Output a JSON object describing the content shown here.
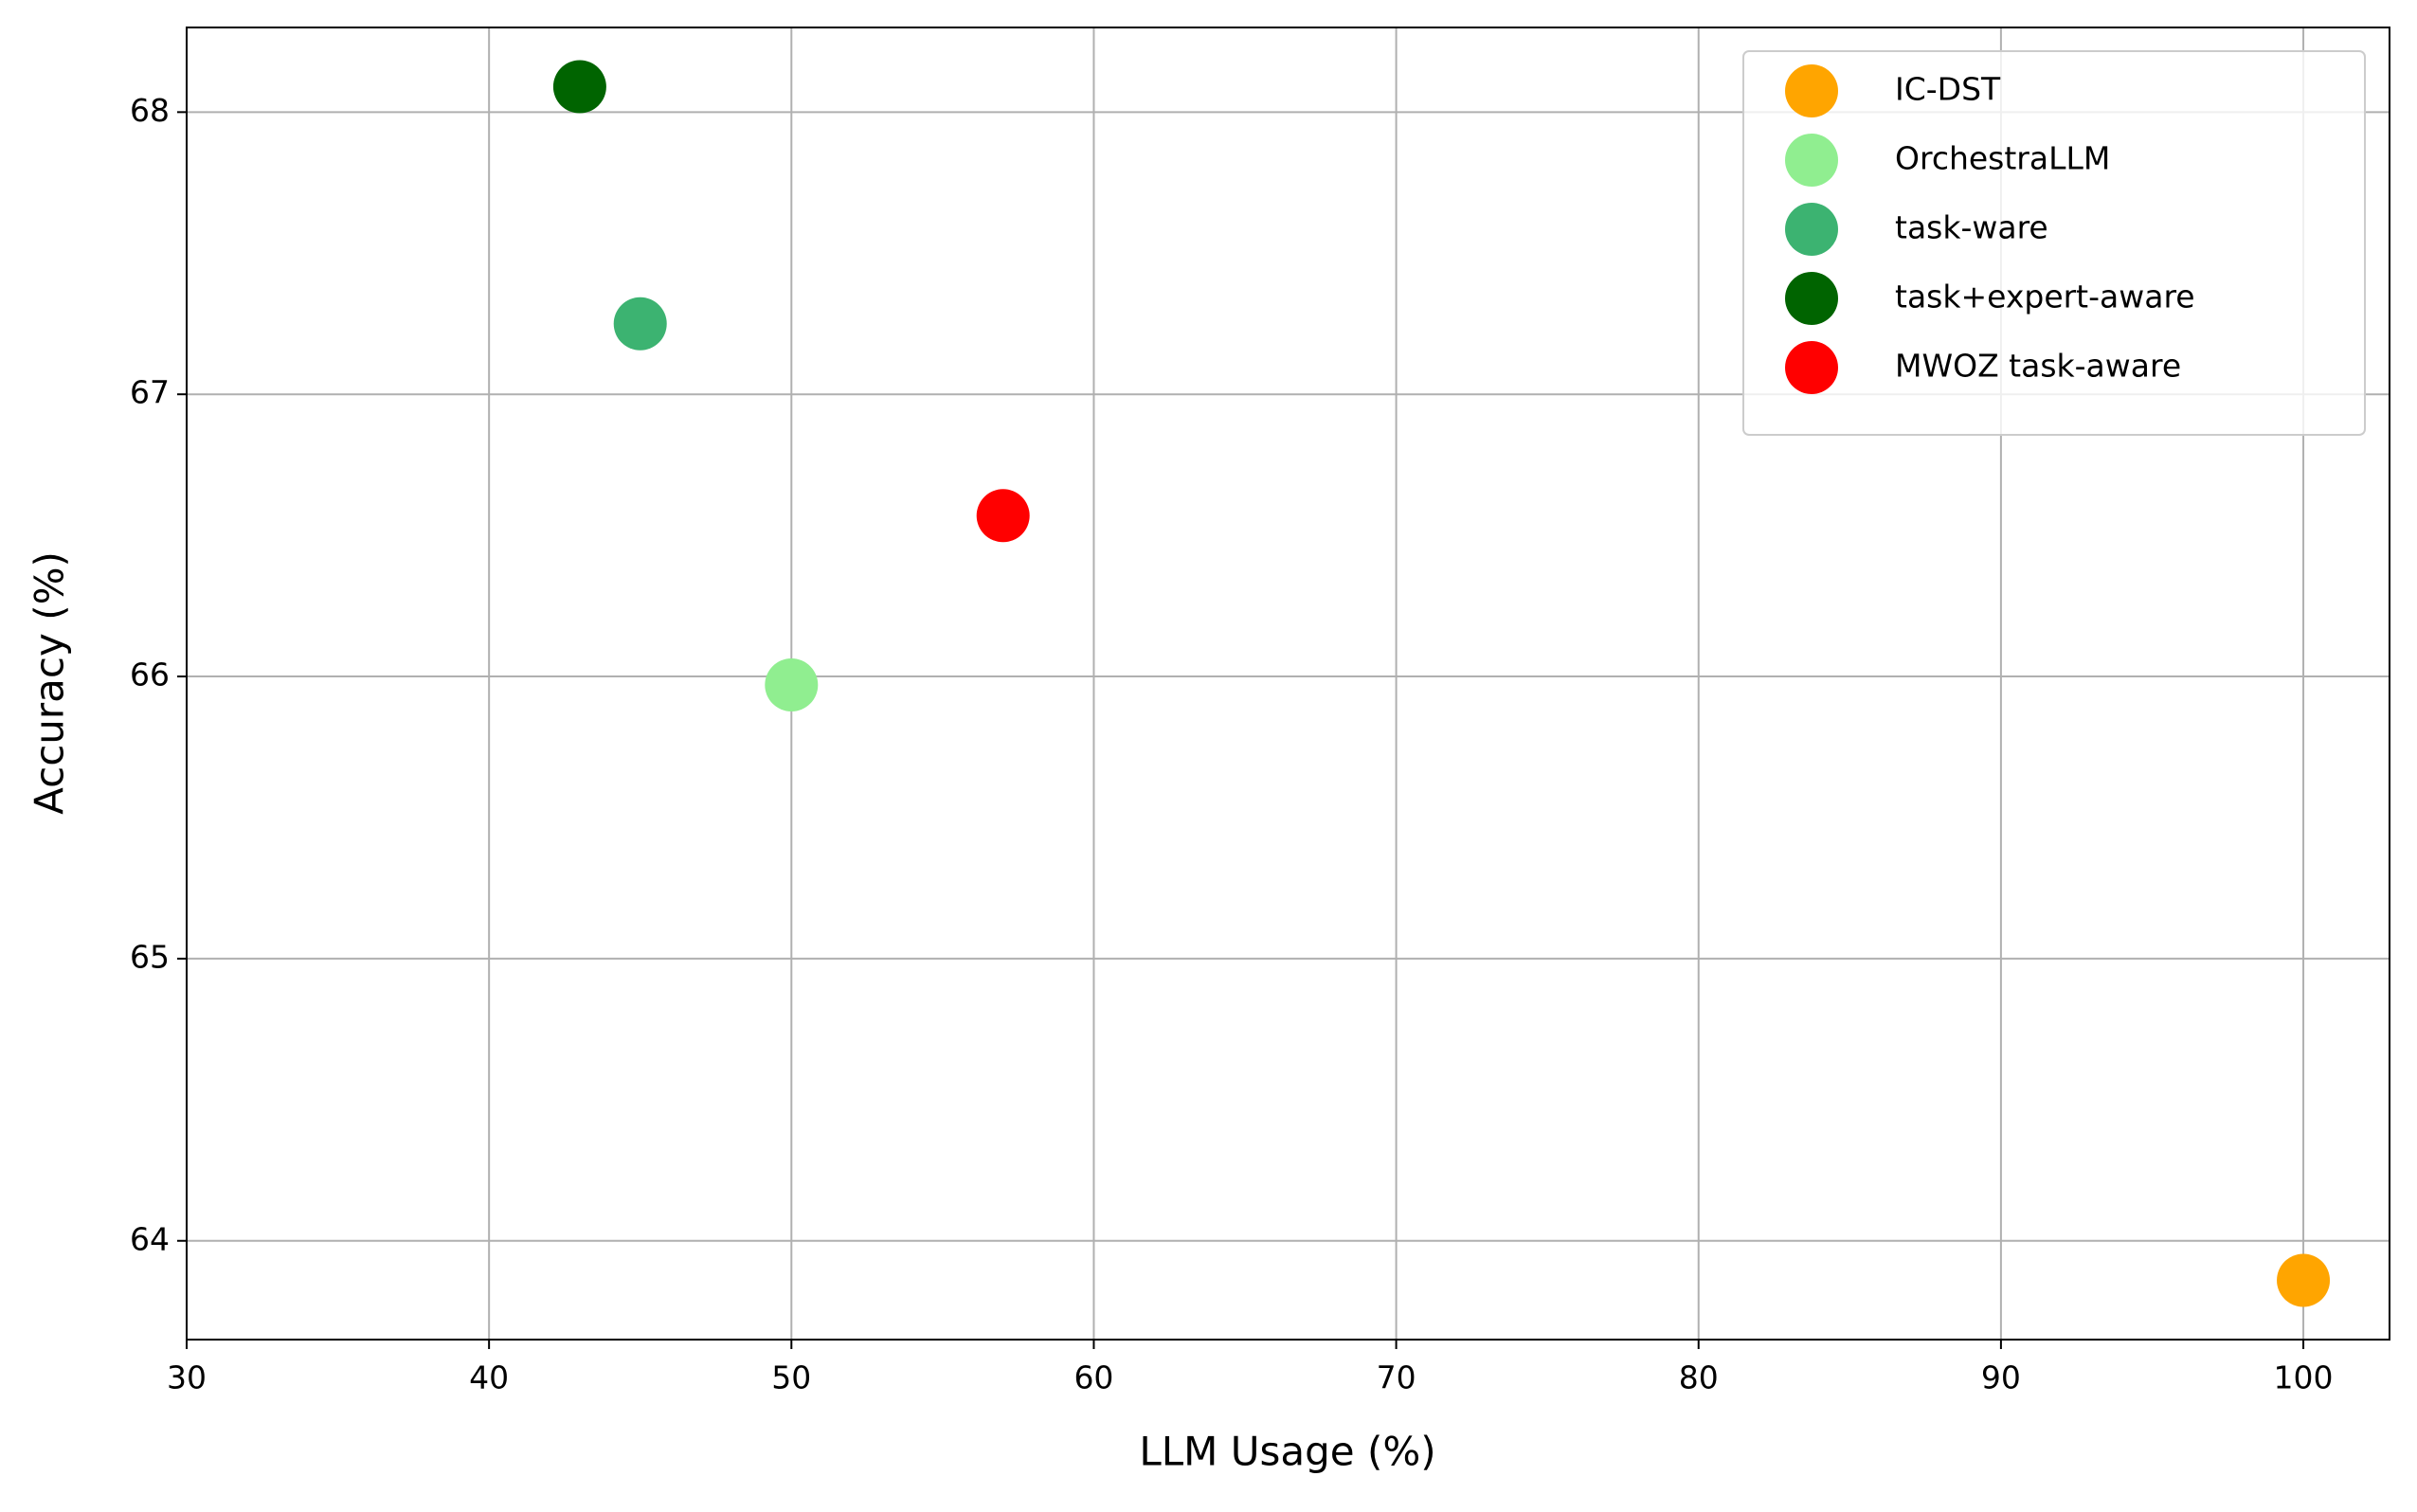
{
  "chart_data": {
    "type": "scatter",
    "xlabel": "LLM Usage (%)",
    "ylabel": "Accuracy (%)",
    "series": [
      {
        "name": "IC-DST",
        "color": "#ffa500",
        "x": [
          100
        ],
        "values": [
          63.86
        ]
      },
      {
        "name": "OrchestraLLM",
        "color": "#90ee90",
        "x": [
          50
        ],
        "values": [
          65.97
        ]
      },
      {
        "name": "task-ware",
        "color": "#3cb371",
        "x": [
          45
        ],
        "values": [
          67.25
        ]
      },
      {
        "name": "task+expert-aware",
        "color": "#006400",
        "x": [
          43
        ],
        "values": [
          68.09
        ]
      },
      {
        "name": "MWOZ task-aware",
        "color": "#ff0000",
        "x": [
          57
        ],
        "values": [
          66.57
        ]
      }
    ],
    "xlim": [
      30,
      102.85
    ],
    "ylim": [
      63.65,
      68.3
    ],
    "xticks": [
      30,
      40,
      50,
      60,
      70,
      80,
      90,
      100
    ],
    "yticks": [
      64,
      65,
      66,
      67,
      68
    ],
    "grid": true,
    "legend": "upper right"
  }
}
